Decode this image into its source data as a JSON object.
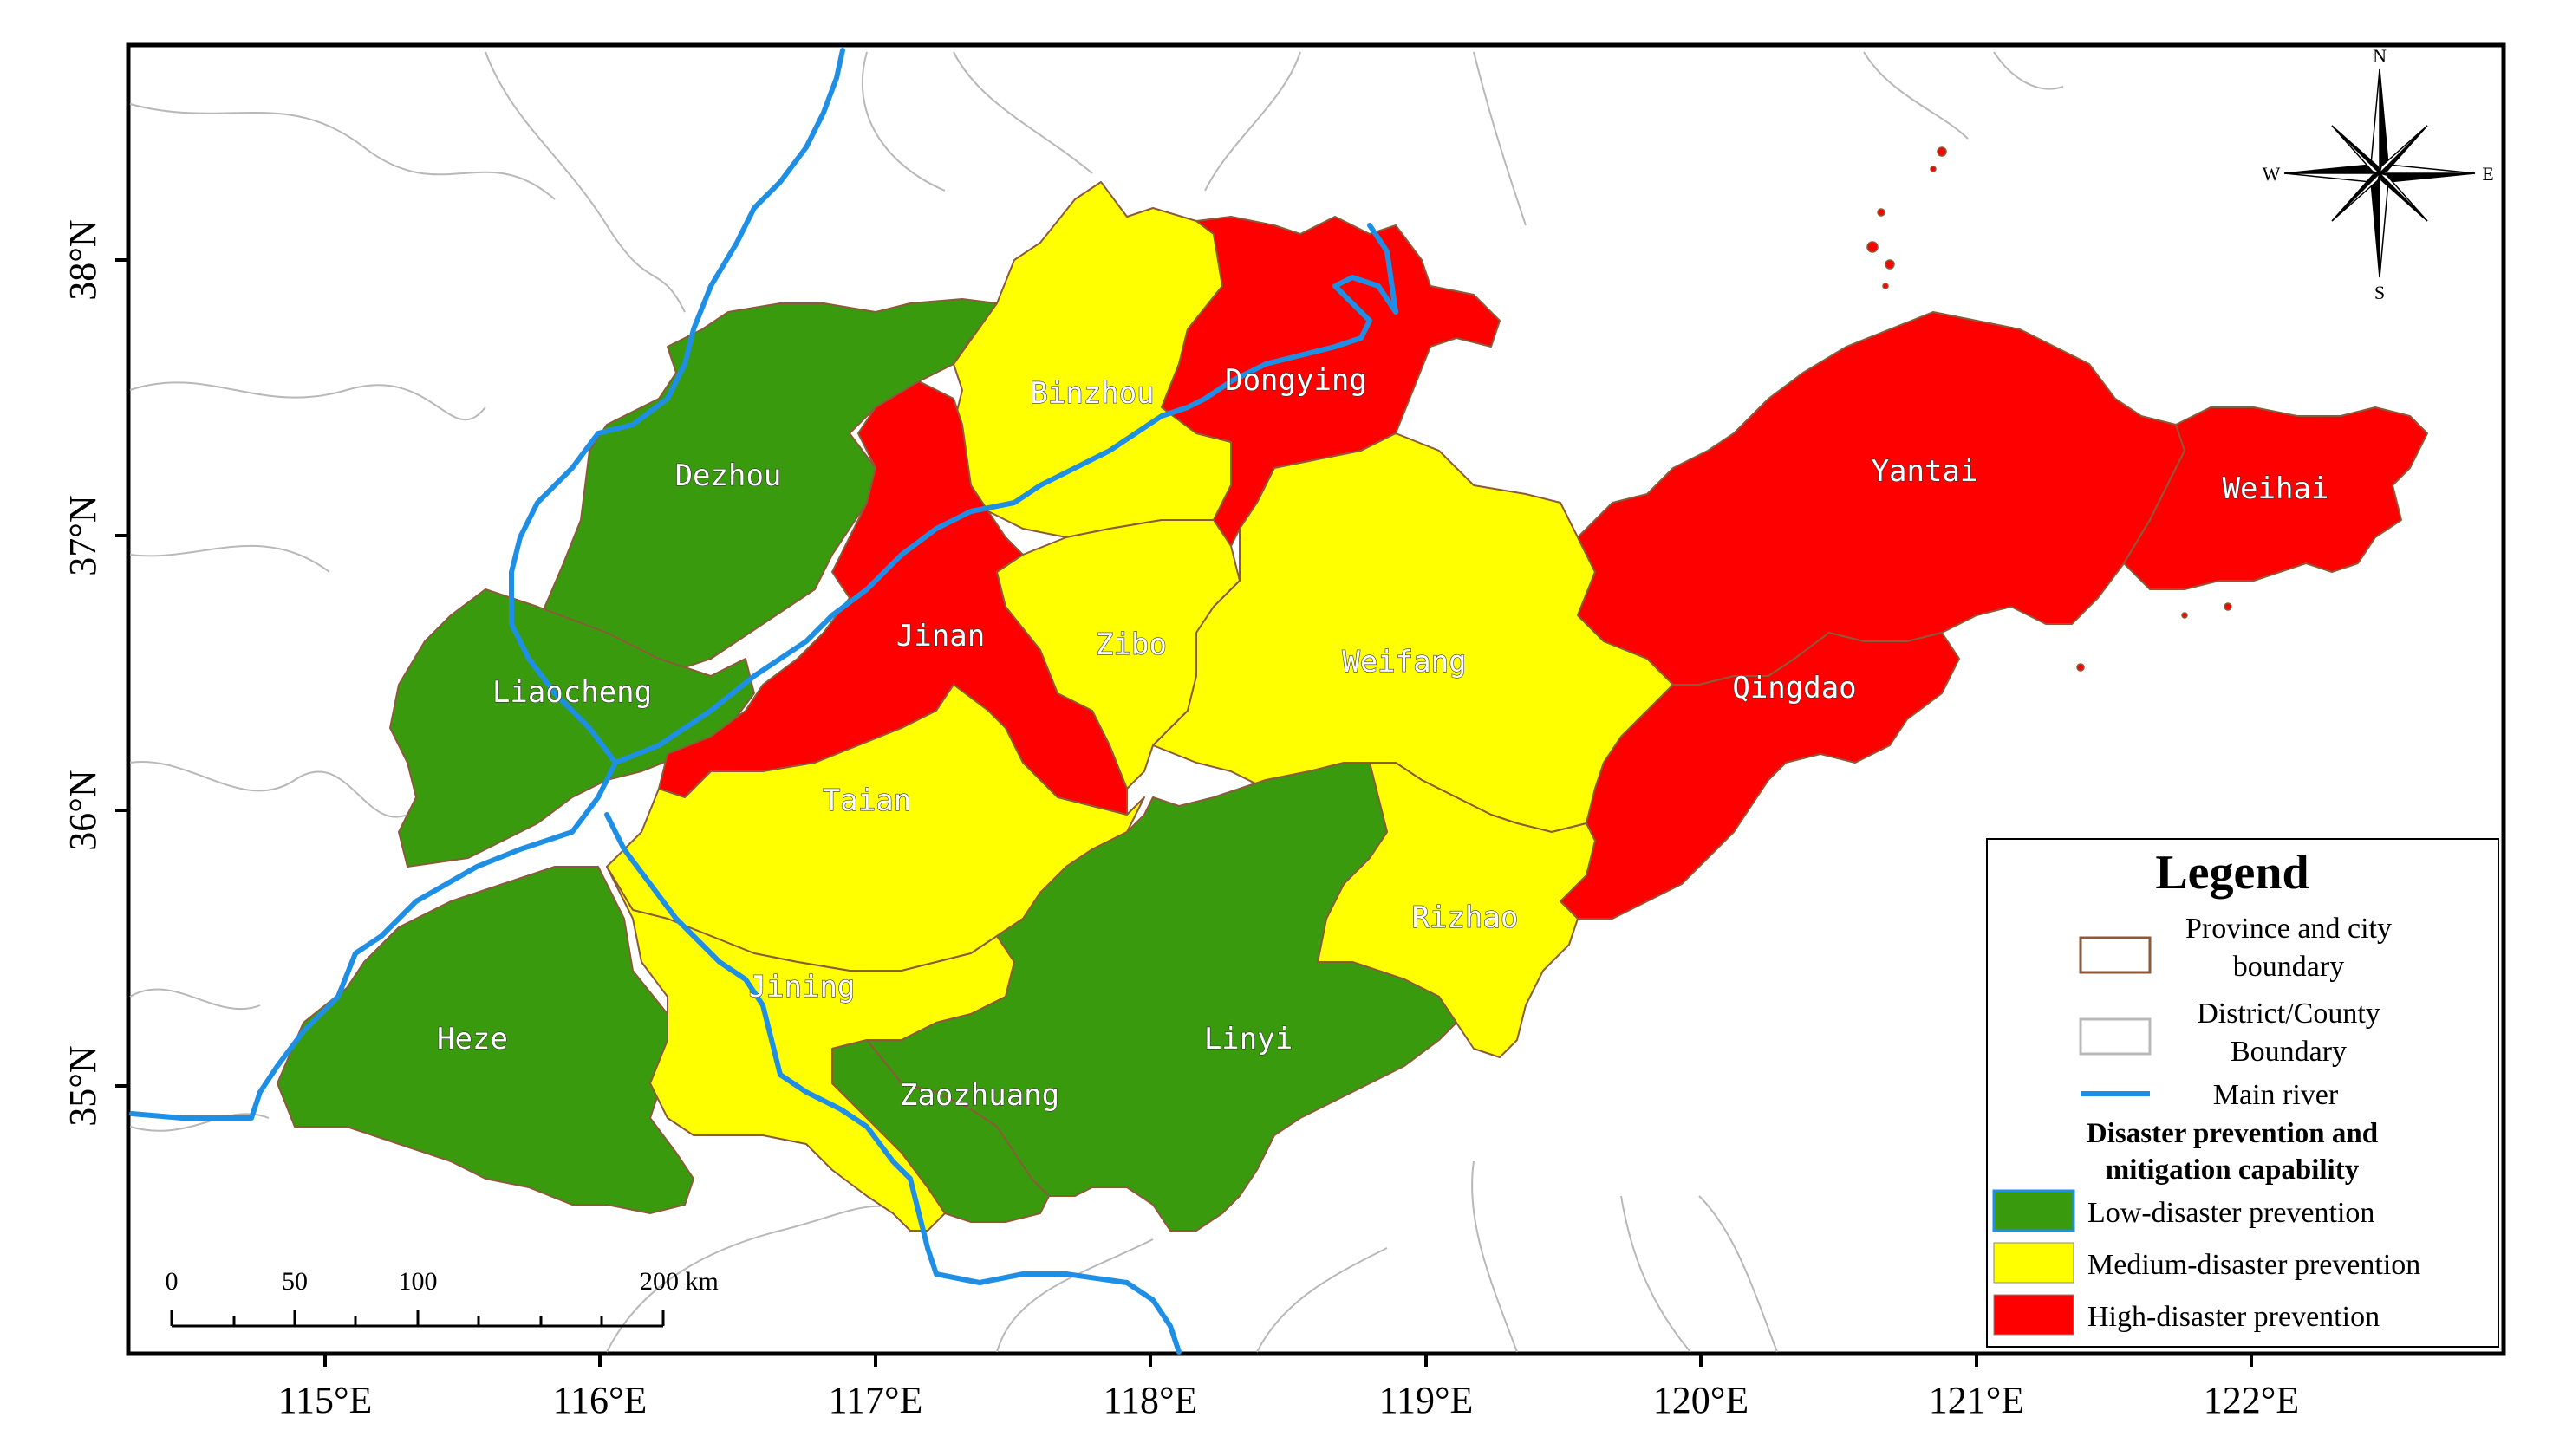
{
  "map": {
    "cities": [
      {
        "name": "Dezhou",
        "level": "low"
      },
      {
        "name": "Liaocheng",
        "level": "low"
      },
      {
        "name": "Heze",
        "level": "low"
      },
      {
        "name": "Linyi",
        "level": "low"
      },
      {
        "name": "Zaozhuang",
        "level": "low"
      },
      {
        "name": "Binzhou",
        "level": "medium"
      },
      {
        "name": "Zibo",
        "level": "medium"
      },
      {
        "name": "Weifang",
        "level": "medium"
      },
      {
        "name": "Taian",
        "level": "medium"
      },
      {
        "name": "Jining",
        "level": "medium"
      },
      {
        "name": "Rizhao",
        "level": "medium"
      },
      {
        "name": "Dongying",
        "level": "high"
      },
      {
        "name": "Jinan",
        "level": "high"
      },
      {
        "name": "Yantai",
        "level": "high"
      },
      {
        "name": "Weihai",
        "level": "high"
      },
      {
        "name": "Qingdao",
        "level": "high"
      }
    ],
    "longitude_ticks": [
      "115°E",
      "116°E",
      "117°E",
      "118°E",
      "119°E",
      "120°E",
      "121°E",
      "122°E"
    ],
    "latitude_ticks": [
      "38°N",
      "37°N",
      "36°N",
      "35°N"
    ],
    "compass": {
      "n": "N",
      "s": "S",
      "e": "E",
      "w": "W"
    },
    "scale_bar": {
      "labels": [
        "0",
        "50",
        "100",
        "200 km"
      ]
    }
  },
  "legend": {
    "title": "Legend",
    "items": [
      {
        "label_line1": "Province and city",
        "label_line2": "boundary"
      },
      {
        "label_line1": "District/County",
        "label_line2": "Boundary"
      },
      {
        "label": "Main river"
      }
    ],
    "capability_heading_line1": "Disaster prevention and",
    "capability_heading_line2": "mitigation capability",
    "levels": [
      {
        "label": "Low-disaster prevention",
        "color": "#3a9a0e"
      },
      {
        "label": "Medium-disaster prevention",
        "color": "#ffff00"
      },
      {
        "label": "High-disaster prevention",
        "color": "#ff0000"
      }
    ]
  },
  "colors": {
    "low": "#3a9a0e",
    "medium": "#ffff00",
    "high": "#ff0000",
    "river": "#1f8fe5",
    "boundary": "#8b5a3a"
  }
}
